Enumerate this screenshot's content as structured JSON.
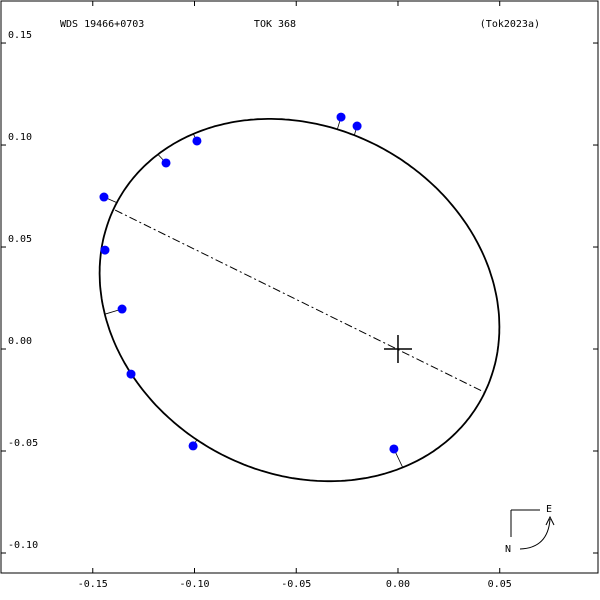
{
  "chart_data": {
    "type": "orbit",
    "header": {
      "left": "WDS 19466+0703",
      "center": "TOK 368",
      "right": "(Tok2023a)"
    },
    "xlim": [
      -0.1951,
      0.0983
    ],
    "ylim": [
      -0.1098,
      0.1706
    ],
    "xticks": [
      -0.15,
      {
        "value": -0.1,
        "label": "-0.10"
      },
      -0.05,
      {
        "value": 0,
        "label": "0.00"
      },
      0.05
    ],
    "yticks": [
      {
        "value": -0.1,
        "label": "-0.10"
      },
      -0.05,
      {
        "value": 0,
        "label": "0.00"
      },
      0.05,
      {
        "value": 0.1,
        "label": "0.10"
      },
      0.15
    ],
    "series": [
      {
        "color": "#0000ff",
        "x": [
          -0.1445,
          -0.144,
          -0.1356,
          -0.1312,
          -0.114,
          -0.0988,
          -0.1007,
          -0.028,
          -0.0201,
          -0.002
        ],
        "values": [
          0.0745,
          0.0485,
          0.0196,
          -0.0123,
          0.0912,
          0.102,
          -0.0475,
          0.1137,
          0.1093,
          -0.049
        ]
      }
    ],
    "orbit": {
      "center_x": -0.0484,
      "center_y": 0.024,
      "semi_major": 0.1017,
      "semi_minor": 0.0848,
      "angle_deg": -28
    },
    "node_line": {
      "x": [
        -0.139,
        0.0423
      ],
      "y": [
        0.0681,
        -0.0211
      ]
    },
    "primary": {
      "x": 0,
      "y": 0
    },
    "compass": {
      "north": "N",
      "east": "E"
    }
  }
}
